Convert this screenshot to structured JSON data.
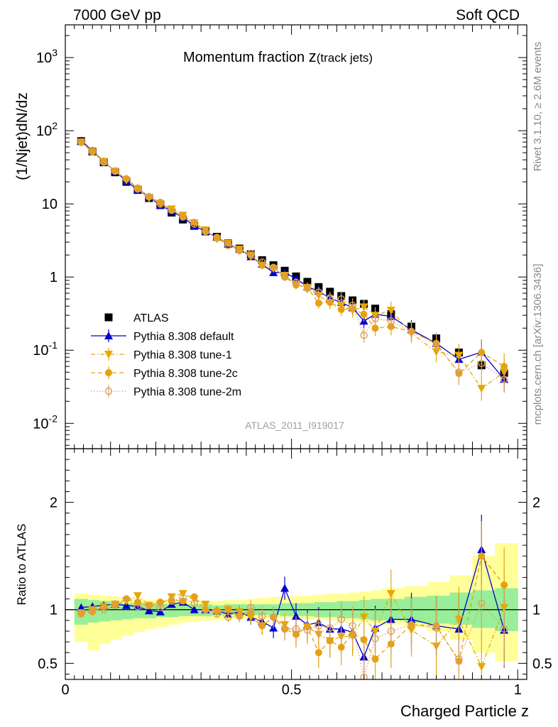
{
  "header": {
    "left": "7000 GeV pp",
    "right": "Soft QCD"
  },
  "side": {
    "rivet": "Rivet 3.1.10, ≥ 2.6M events",
    "mcplots": "mcplots.cern.ch [arXiv:1306.3436]"
  },
  "chart_data": [
    {
      "type": "scatter",
      "title": "Momentum fraction z(track jets)",
      "title_main": "Momentum fraction ",
      "title_z": "z",
      "title_sub": "(track jets)",
      "ylabel": "(1/Njet)dN/dz",
      "yscale": "log",
      "ylim": [
        0.0045,
        2800
      ],
      "xlim": [
        0,
        1.02
      ],
      "yticklabels": [
        {
          "base": "10",
          "exp": "-2"
        },
        {
          "base": "10",
          "exp": "-1"
        },
        {
          "base": "1",
          "exp": ""
        },
        {
          "base": "10",
          "exp": ""
        },
        {
          "base": "10",
          "exp": "2"
        },
        {
          "base": "10",
          "exp": "3"
        }
      ],
      "watermark": "ATLAS_2011_I919017",
      "legend_position": "lower-left",
      "x": [
        0.035,
        0.06,
        0.085,
        0.11,
        0.135,
        0.16,
        0.185,
        0.21,
        0.235,
        0.26,
        0.285,
        0.31,
        0.335,
        0.36,
        0.385,
        0.41,
        0.435,
        0.46,
        0.485,
        0.51,
        0.535,
        0.56,
        0.585,
        0.61,
        0.635,
        0.66,
        0.685,
        0.72,
        0.765,
        0.82,
        0.87,
        0.92,
        0.97
      ],
      "series": [
        {
          "name": "ATLAS",
          "style": "square",
          "color": "#000000",
          "values": [
            72,
            52,
            37,
            27,
            20,
            15.5,
            12,
            9.8,
            7.6,
            6.1,
            5,
            4.2,
            3.55,
            2.9,
            2.45,
            2.05,
            1.7,
            1.45,
            1.22,
            1.02,
            0.86,
            0.73,
            0.63,
            0.55,
            0.48,
            0.43,
            0.37,
            0.31,
            0.21,
            0.145,
            0.093,
            0.062,
            0.049
          ]
        },
        {
          "name": "Pythia 8.308 default",
          "style": "triangle-up",
          "line": "solid",
          "color": "#0000cc",
          "values": [
            73,
            53,
            38,
            28,
            20.5,
            15.5,
            12.5,
            9.5,
            8,
            6.5,
            5,
            4.2,
            3.5,
            2.8,
            2.4,
            1.9,
            1.5,
            1.15,
            1.15,
            0.95,
            0.74,
            0.64,
            0.51,
            0.45,
            0.38,
            0.25,
            0.31,
            0.29,
            0.19,
            0.124,
            0.075,
            0.094,
            0.04
          ]
        },
        {
          "name": "Pythia 8.308 tune-1",
          "style": "triangle-down",
          "line": "dashdot",
          "color": "#e6a800",
          "values": [
            70,
            52,
            38,
            28,
            21,
            16,
            12,
            10,
            8.5,
            7,
            5.5,
            4.4,
            3.3,
            2.9,
            2.4,
            1.9,
            1.45,
            1.3,
            1.05,
            0.79,
            0.72,
            0.56,
            0.44,
            0.41,
            0.35,
            0.39,
            0.3,
            0.35,
            0.17,
            0.095,
            0.085,
            0.03,
            0.05
          ]
        },
        {
          "name": "Pythia 8.308 tune-2c",
          "style": "circle",
          "line": "dashed",
          "color": "#e6a010",
          "values": [
            69,
            51,
            38,
            28,
            22,
            16.5,
            12.5,
            10.5,
            8.3,
            6.6,
            5.6,
            4.2,
            3.5,
            2.9,
            2.3,
            2,
            1.45,
            1.35,
            1,
            0.78,
            0.72,
            0.44,
            0.45,
            0.36,
            0.37,
            0.31,
            0.2,
            0.21,
            0.18,
            0.124,
            0.048,
            0.093,
            0.06
          ]
        },
        {
          "name": "Pythia 8.308 tune-2m",
          "style": "open-circle",
          "line": "dotted",
          "color": "#dba05a",
          "values": [
            70,
            52,
            37,
            28,
            22,
            16,
            12.5,
            10,
            8.2,
            6.8,
            5.3,
            4.2,
            3.4,
            2.7,
            2.3,
            2.1,
            1.6,
            1.35,
            1,
            0.84,
            0.7,
            0.62,
            0.52,
            0.5,
            0.41,
            0.16,
            0.27,
            0.25,
            0.18,
            0.12,
            0.05,
            0.066,
            0.04
          ]
        }
      ]
    },
    {
      "type": "line",
      "ylabel": "Ratio to ATLAS",
      "xlabel": "Charged Particle z",
      "ylim": [
        0.35,
        2.5
      ],
      "yticks": [
        0.5,
        1,
        2
      ],
      "yticklabels": [
        "0.5",
        "1",
        "2"
      ],
      "xticks": [
        0,
        0.5,
        1
      ],
      "xticklabels": [
        "0",
        "0.5",
        "1"
      ],
      "band_edges": [
        0.02,
        0.05,
        0.075,
        0.1,
        0.125,
        0.15,
        0.175,
        0.2,
        0.225,
        0.25,
        0.275,
        0.3,
        0.325,
        0.35,
        0.375,
        0.4,
        0.425,
        0.45,
        0.475,
        0.5,
        0.525,
        0.55,
        0.575,
        0.6,
        0.625,
        0.65,
        0.675,
        0.7,
        0.75,
        0.8,
        0.85,
        0.9,
        0.95,
        1.0
      ],
      "band_inner": [
        [
          0.86,
          1.1
        ],
        [
          0.88,
          1.09
        ],
        [
          0.89,
          1.08
        ],
        [
          0.9,
          1.07
        ],
        [
          0.91,
          1.06
        ],
        [
          0.92,
          1.06
        ],
        [
          0.92,
          1.06
        ],
        [
          0.93,
          1.05
        ],
        [
          0.93,
          1.05
        ],
        [
          0.94,
          1.05
        ],
        [
          0.94,
          1.05
        ],
        [
          0.94,
          1.05
        ],
        [
          0.95,
          1.04
        ],
        [
          0.95,
          1.05
        ],
        [
          0.95,
          1.05
        ],
        [
          0.95,
          1.05
        ],
        [
          0.95,
          1.05
        ],
        [
          0.95,
          1.05
        ],
        [
          0.94,
          1.06
        ],
        [
          0.94,
          1.06
        ],
        [
          0.94,
          1.06
        ],
        [
          0.93,
          1.07
        ],
        [
          0.93,
          1.07
        ],
        [
          0.92,
          1.08
        ],
        [
          0.92,
          1.08
        ],
        [
          0.91,
          1.09
        ],
        [
          0.9,
          1.1
        ],
        [
          0.9,
          1.1
        ],
        [
          0.88,
          1.12
        ],
        [
          0.87,
          1.13
        ],
        [
          0.86,
          1.16
        ],
        [
          0.83,
          1.18
        ],
        [
          0.8,
          1.2
        ]
      ],
      "band_outer": [
        [
          0.7,
          1.15
        ],
        [
          0.62,
          1.14
        ],
        [
          0.68,
          1.13
        ],
        [
          0.72,
          1.12
        ],
        [
          0.76,
          1.11
        ],
        [
          0.79,
          1.1
        ],
        [
          0.82,
          1.09
        ],
        [
          0.84,
          1.09
        ],
        [
          0.86,
          1.08
        ],
        [
          0.88,
          1.08
        ],
        [
          0.89,
          1.08
        ],
        [
          0.9,
          1.08
        ],
        [
          0.9,
          1.08
        ],
        [
          0.91,
          1.09
        ],
        [
          0.91,
          1.09
        ],
        [
          0.92,
          1.1
        ],
        [
          0.92,
          1.11
        ],
        [
          0.92,
          1.12
        ],
        [
          0.92,
          1.12
        ],
        [
          0.92,
          1.13
        ],
        [
          0.91,
          1.13
        ],
        [
          0.91,
          1.14
        ],
        [
          0.9,
          1.15
        ],
        [
          0.9,
          1.15
        ],
        [
          0.89,
          1.16
        ],
        [
          0.88,
          1.17
        ],
        [
          0.87,
          1.18
        ],
        [
          0.86,
          1.2
        ],
        [
          0.84,
          1.22
        ],
        [
          0.8,
          1.26
        ],
        [
          0.72,
          1.32
        ],
        [
          0.6,
          1.5
        ],
        [
          0.52,
          1.62
        ]
      ],
      "series": [
        {
          "name": "Pythia 8.308 default",
          "color": "#0000cc",
          "values": [
            1.02,
            1.03,
            1.04,
            1.05,
            1.04,
            1.03,
            0.99,
            0.98,
            1.05,
            1.07,
            1.0,
            1.0,
            0.99,
            0.96,
            0.98,
            0.93,
            0.89,
            0.83,
            1.2,
            0.94,
            0.86,
            0.88,
            0.82,
            0.82,
            0.79,
            0.56,
            0.83,
            0.91,
            0.91,
            0.85,
            0.82,
            1.56,
            0.81
          ]
        },
        {
          "name": "Pythia 8.308 tune-1",
          "color": "#e6a800",
          "values": [
            0.97,
            1.0,
            1.03,
            1.05,
            1.08,
            1.13,
            1.04,
            1.05,
            1.12,
            1.15,
            1.1,
            1.05,
            0.97,
            1.0,
            0.98,
            0.93,
            0.85,
            0.92,
            0.86,
            0.77,
            0.84,
            0.77,
            0.71,
            0.75,
            0.75,
            0.93,
            0.8,
            1.15,
            0.81,
            0.66,
            0.91,
            0.47,
            1.02
          ]
        },
        {
          "name": "Pythia 8.308 tune-2c",
          "color": "#e6a010",
          "values": [
            0.96,
            0.98,
            1.03,
            1.05,
            1.1,
            1.07,
            1.04,
            1.07,
            1.09,
            1.08,
            1.12,
            1.0,
            0.99,
            1.0,
            0.94,
            0.98,
            0.85,
            0.93,
            0.82,
            0.77,
            0.84,
            0.6,
            0.71,
            0.65,
            0.77,
            0.72,
            0.54,
            0.68,
            0.86,
            0.85,
            0.52,
            1.5,
            1.23
          ]
        },
        {
          "name": "Pythia 8.308 tune-2m",
          "color": "#dba05a",
          "values": [
            0.97,
            1.0,
            1.0,
            1.04,
            1.1,
            1.03,
            1.04,
            1.02,
            1.08,
            1.11,
            1.06,
            1.0,
            0.96,
            0.93,
            0.94,
            1.02,
            0.94,
            0.93,
            0.82,
            0.82,
            0.81,
            0.85,
            0.83,
            0.91,
            0.85,
            0.37,
            0.73,
            0.8,
            0.86,
            0.83,
            0.54,
            1.06,
            0.82
          ]
        }
      ]
    }
  ]
}
